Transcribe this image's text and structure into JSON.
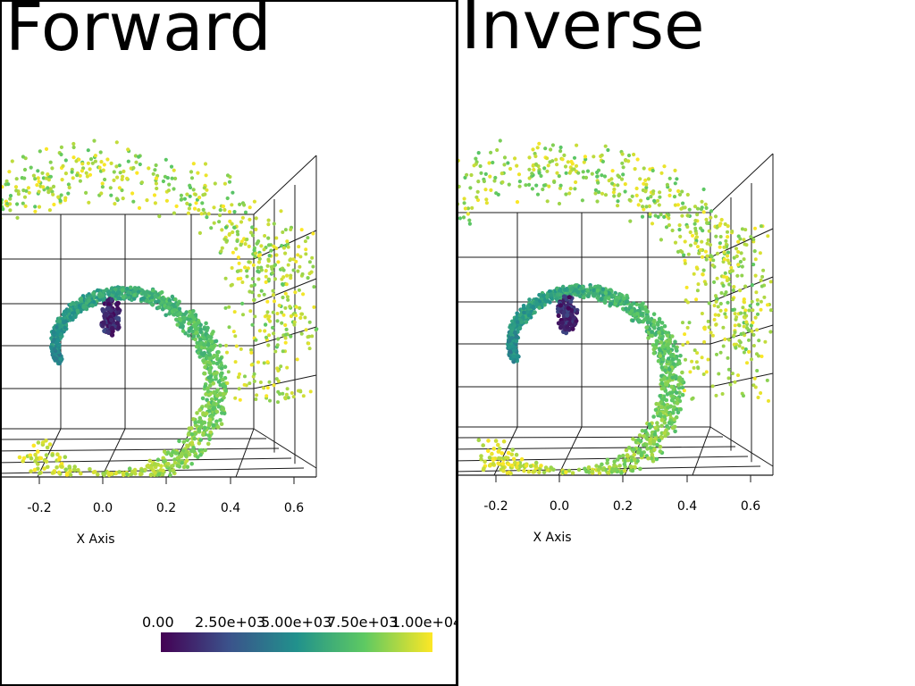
{
  "panels": [
    {
      "title": "Forward"
    },
    {
      "title": "Inverse"
    }
  ],
  "axes": {
    "x_title": "X Axis",
    "x_ticks": [
      "-0.2",
      "0.0",
      "0.2",
      "0.4",
      "0.6"
    ]
  },
  "colorbar": {
    "colormap": "viridis",
    "stops": [
      "#440154",
      "#3b528b",
      "#21918c",
      "#5ec962",
      "#fde725"
    ],
    "labels": [
      "0.00",
      "2.50e+03",
      "5.00e+03",
      "7.50e+03",
      "1.00e+04"
    ]
  }
}
